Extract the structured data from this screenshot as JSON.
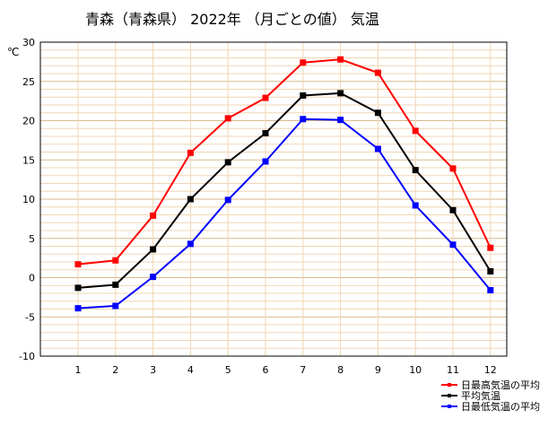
{
  "chart_data": {
    "type": "line",
    "title": "青森（青森県）  2022年   （月ごとの値）   気温",
    "ylabel": "℃",
    "xlabel": "",
    "categories": [
      "1",
      "2",
      "3",
      "4",
      "5",
      "6",
      "7",
      "8",
      "9",
      "10",
      "11",
      "12"
    ],
    "ylim": [
      -10,
      30
    ],
    "yticks": [
      -10,
      -5,
      0,
      5,
      10,
      15,
      20,
      25,
      30
    ],
    "grid": true,
    "legend_position": "bottom-right",
    "series": [
      {
        "name": "日最高気温の平均",
        "color": "#ff0000",
        "values": [
          1.7,
          2.2,
          7.9,
          15.9,
          20.3,
          22.9,
          27.4,
          27.8,
          26.1,
          18.7,
          13.9,
          3.8
        ]
      },
      {
        "name": "平均気温",
        "color": "#000000",
        "values": [
          -1.3,
          -0.9,
          3.6,
          10.0,
          14.7,
          18.4,
          23.2,
          23.5,
          21.0,
          13.7,
          8.6,
          0.8
        ]
      },
      {
        "name": "日最低気温の平均",
        "color": "#0000ff",
        "values": [
          -3.9,
          -3.6,
          0.1,
          4.3,
          9.9,
          14.8,
          20.2,
          20.1,
          16.4,
          9.2,
          4.2,
          -1.6
        ]
      }
    ],
    "colors": {
      "grid_minor": "#f0d6b4",
      "grid_major": "#d9b88f",
      "frame": "#000000"
    }
  }
}
